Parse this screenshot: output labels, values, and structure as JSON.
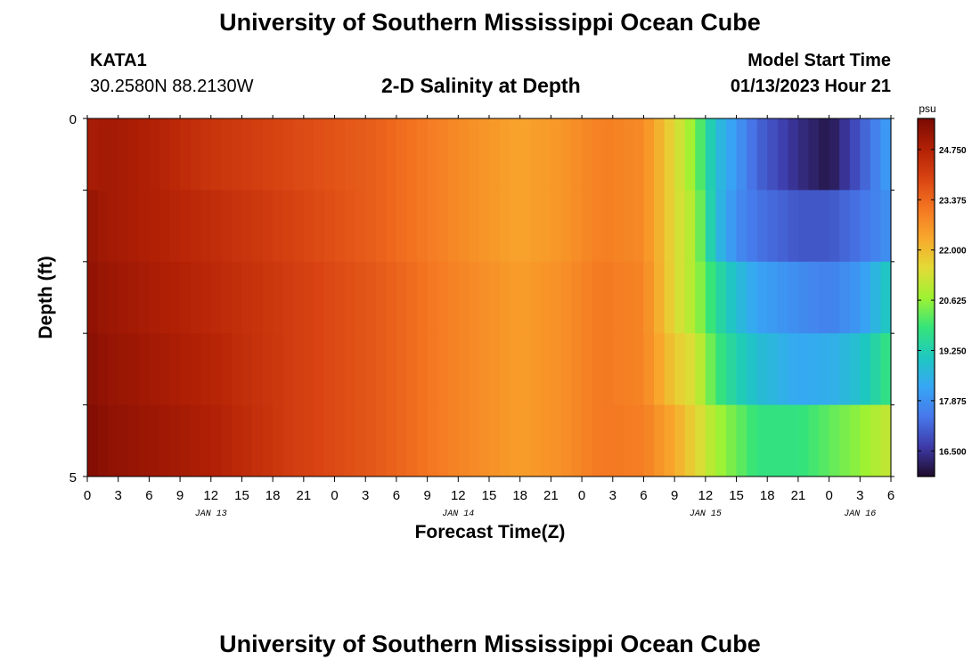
{
  "header": {
    "title": "University of Southern Mississippi Ocean Cube",
    "station_name": "KATA1",
    "station_coords": "30.2580N  88.2130W",
    "model_start_label": "Model Start Time",
    "model_start_value": "01/13/2023 Hour 21"
  },
  "footer": {
    "title": "University of Southern Mississippi Ocean Cube"
  },
  "chart_data": {
    "type": "heatmap",
    "title": "2-D Salinity at Depth",
    "xlabel": "Forecast Time(Z)",
    "ylabel": "Depth (ft)",
    "colorbar_label": "psu",
    "colorbar_ticks": [
      "24.750",
      "23.375",
      "22.000",
      "20.625",
      "19.250",
      "17.875",
      "16.500"
    ],
    "colorbar_range": [
      15.8,
      25.6
    ],
    "y_ticks": [
      "0",
      "5"
    ],
    "ylim": [
      0,
      5
    ],
    "x_tick_labels": [
      "0",
      "3",
      "6",
      "9",
      "12",
      "15",
      "18",
      "21",
      "0",
      "3",
      "6",
      "9",
      "12",
      "15",
      "18",
      "21",
      "0",
      "3",
      "6",
      "9",
      "12",
      "15",
      "18",
      "21",
      "0",
      "3",
      "6"
    ],
    "x_date_labels": [
      {
        "label": "JAN 13",
        "tick_index": 4
      },
      {
        "label": "JAN 14",
        "tick_index": 12
      },
      {
        "label": "JAN 15",
        "tick_index": 20
      },
      {
        "label": "JAN 16",
        "tick_index": 25
      }
    ],
    "x_range_hours": [
      0,
      78
    ],
    "depth_layers": [
      0.5,
      1.5,
      2.5,
      3.5,
      4.5
    ],
    "salinity_keyframes": {
      "hours": [
        0,
        2,
        6,
        12,
        20,
        28,
        36,
        42,
        46,
        50,
        54,
        57,
        59,
        61,
        63,
        65,
        69,
        72,
        75,
        78
      ],
      "rows": [
        [
          24.9,
          25.0,
          24.8,
          24.3,
          23.9,
          23.5,
          22.8,
          22.4,
          22.6,
          23.0,
          22.8,
          21.5,
          20.5,
          18.8,
          18.0,
          17.2,
          16.4,
          16.0,
          17.0,
          18.2
        ],
        [
          25.2,
          25.0,
          24.8,
          24.5,
          24.0,
          23.5,
          22.8,
          22.4,
          22.6,
          23.0,
          22.8,
          21.5,
          20.8,
          18.8,
          17.8,
          17.4,
          17.0,
          17.0,
          17.4,
          17.9
        ],
        [
          25.3,
          25.1,
          24.9,
          24.6,
          24.1,
          23.6,
          22.9,
          22.5,
          22.7,
          23.1,
          22.9,
          21.5,
          20.8,
          19.6,
          18.8,
          18.2,
          17.8,
          17.6,
          18.0,
          19.2
        ],
        [
          25.4,
          25.2,
          25.0,
          24.7,
          24.1,
          23.6,
          22.9,
          22.5,
          22.7,
          23.1,
          22.9,
          21.8,
          21.3,
          20.0,
          19.3,
          18.8,
          18.3,
          18.4,
          18.9,
          19.9
        ],
        [
          25.5,
          25.3,
          25.1,
          24.8,
          24.1,
          23.6,
          22.9,
          22.5,
          22.7,
          23.1,
          23.0,
          22.3,
          21.6,
          20.8,
          20.3,
          19.8,
          19.8,
          20.2,
          20.6,
          21.2
        ]
      ]
    },
    "colormap": [
      "#1e0b2a",
      "#3e3aa8",
      "#4777ea",
      "#37a6f5",
      "#1ec8c0",
      "#35e47a",
      "#9ff232",
      "#e3da36",
      "#f8a72c",
      "#f47521",
      "#d84312",
      "#b12005",
      "#7a0a03"
    ]
  }
}
